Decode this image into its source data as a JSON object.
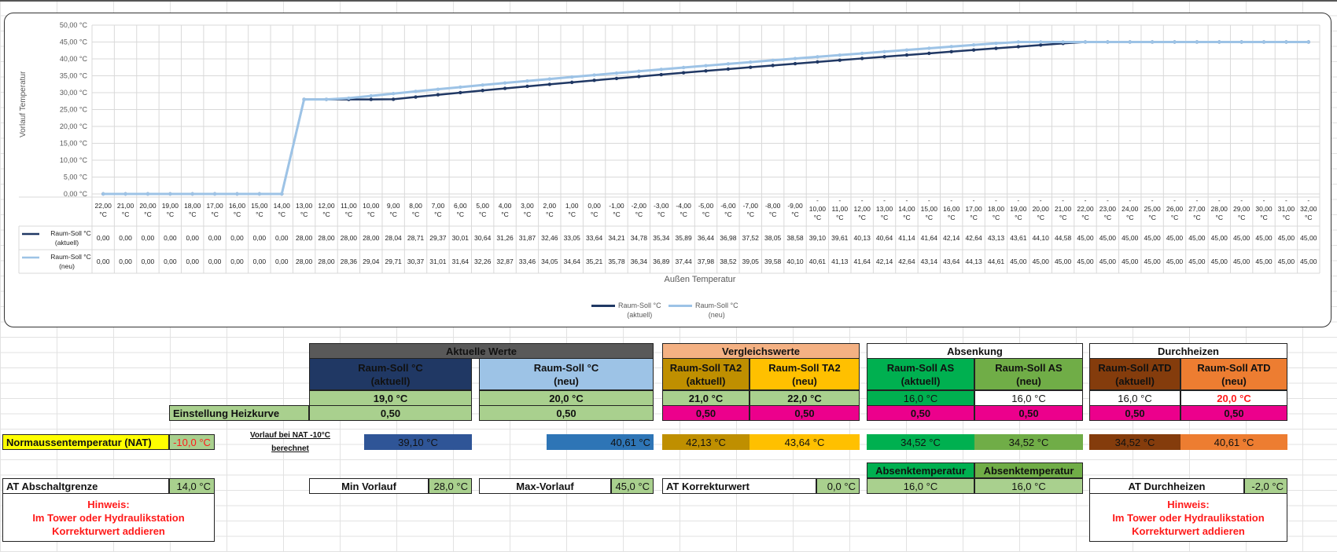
{
  "colors": {
    "aktuell": "#203864",
    "neu": "#9dc3e6",
    "grid": "#d9d9d9"
  },
  "chart_data": {
    "type": "line",
    "ylabel": "Vorlauf Temperatur",
    "xlabel": "Außen Temperatur",
    "ylim": [
      0,
      50
    ],
    "yticks": [
      "0,00 °C",
      "5,00 °C",
      "10,00 °C",
      "15,00 °C",
      "20,00 °C",
      "25,00 °C",
      "30,00 °C",
      "35,00 °C",
      "40,00 °C",
      "45,00 °C",
      "50,00 °C"
    ],
    "grid": true,
    "legend": "bottom",
    "categories": [
      22,
      21,
      20,
      19,
      18,
      17,
      16,
      15,
      14,
      13,
      12,
      11,
      10,
      9,
      8,
      7,
      6,
      5,
      4,
      3,
      2,
      1,
      0,
      -1,
      -2,
      -3,
      -4,
      -5,
      -6,
      -7,
      -8,
      -9,
      -10,
      -11,
      -12,
      -13,
      -14,
      -15,
      -16,
      -17,
      -18,
      -19,
      -20,
      -21,
      -22,
      -23,
      -24,
      -25,
      -26,
      -27,
      -28,
      -29,
      -30,
      -31,
      -32
    ],
    "category_unit": "°C",
    "series": [
      {
        "name": "Raum-Soll °C (aktuell)",
        "label_line1": "Raum-Soll °C",
        "label_line2": "(aktuell)",
        "values": [
          0,
          0,
          0,
          0,
          0,
          0,
          0,
          0,
          0,
          28.0,
          28.0,
          28.0,
          28.0,
          28.04,
          28.71,
          29.37,
          30.01,
          30.64,
          31.26,
          31.87,
          32.46,
          33.05,
          33.64,
          34.21,
          34.78,
          35.34,
          35.89,
          36.44,
          36.98,
          37.52,
          38.05,
          38.58,
          39.1,
          39.61,
          40.13,
          40.64,
          41.14,
          41.64,
          42.14,
          42.64,
          43.13,
          43.61,
          44.1,
          44.58,
          45,
          45,
          45,
          45,
          45,
          45,
          45,
          45,
          45,
          45,
          45
        ]
      },
      {
        "name": "Raum-Soll °C (neu)",
        "label_line1": "Raum-Soll °C",
        "label_line2": "(neu)",
        "values": [
          0,
          0,
          0,
          0,
          0,
          0,
          0,
          0,
          0,
          28.0,
          28.0,
          28.36,
          29.04,
          29.71,
          30.37,
          31.01,
          31.64,
          32.26,
          32.87,
          33.46,
          34.05,
          34.64,
          35.21,
          35.78,
          36.34,
          36.89,
          37.44,
          37.98,
          38.52,
          39.05,
          39.58,
          40.1,
          40.61,
          41.13,
          41.64,
          42.14,
          42.64,
          43.14,
          43.64,
          44.13,
          44.61,
          45,
          45,
          45,
          45,
          45,
          45,
          45,
          45,
          45,
          45,
          45,
          45,
          45,
          45
        ]
      }
    ]
  },
  "sheet": {
    "aktuelle_werte": "Aktuelle Werte",
    "vergleichswerte": "Vergleichswerte",
    "absenkung": "Absenkung",
    "durchheizen": "Durchheizen",
    "h_rs_akt": [
      "Raum-Soll °C",
      "(aktuell)"
    ],
    "h_rs_neu": [
      "Raum-Soll °C",
      "(neu)"
    ],
    "h_ta2_akt": [
      "Raum-Soll TA2",
      "(aktuell)"
    ],
    "h_ta2_neu": [
      "Raum-Soll TA2",
      "(neu)"
    ],
    "h_as_akt": [
      "Raum-Soll AS",
      "(aktuell)"
    ],
    "h_as_neu": [
      "Raum-Soll AS",
      "(neu)"
    ],
    "h_atd_akt": [
      "Raum-Soll ATD",
      "(aktuell)"
    ],
    "h_atd_neu": [
      "Raum-Soll ATD",
      "(neu)"
    ],
    "soll": [
      "19,0 °C",
      "20,0 °C",
      "21,0 °C",
      "22,0 °C",
      "16,0 °C",
      "16,0 °C",
      "16,0 °C",
      "20,0 °C"
    ],
    "heizkurve_label": "Einstellung Heizkurve",
    "heizkurve": [
      "0,50",
      "0,50",
      "0,50",
      "0,50",
      "0,50",
      "0,50",
      "0,50",
      "0,50"
    ],
    "nat_label": "Normaussentemperatur (NAT)",
    "nat_value": "-10,0 °C",
    "vorlauf_nat_label": "Vorlauf bei NAT -10°C berechnet",
    "vorlauf_nat": [
      "39,10 °C",
      "40,61 °C",
      "42,13 °C",
      "43,64 °C",
      "34,52 °C",
      "34,52 °C",
      "34,52 °C",
      "40,61 °C"
    ],
    "absenktemp_label": "Absenktemperatur",
    "absenktemp": [
      "16,0 °C",
      "16,0 °C"
    ],
    "abschalt_label": "AT Abschaltgrenze",
    "abschalt_value": "14,0 °C",
    "min_vorlauf_label": "Min Vorlauf",
    "min_vorlauf_value": "28,0 °C",
    "max_vorlauf_label": "Max-Vorlauf",
    "max_vorlauf_value": "45,0 °C",
    "korrektur_label": "AT Korrekturwert",
    "korrektur_value": "0,0 °C",
    "durchheizen_label": "AT Durchheizen",
    "durchheizen_value": "-2,0 °C",
    "hinweis": [
      "Hinweis:",
      "Im Tower oder Hydraulikstation",
      "Korrekturwert addieren"
    ]
  }
}
